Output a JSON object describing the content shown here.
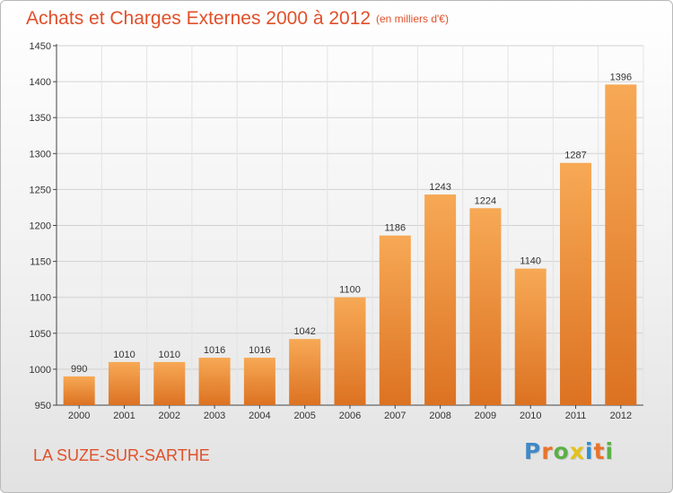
{
  "header": {
    "title": "Achats et Charges Externes 2000 à 2012",
    "subtitle": "(en milliers d'€)"
  },
  "footer": {
    "commune": "LA SUZE-SUR-SARTHE",
    "logo_letters": [
      "P",
      "r",
      "o",
      "x",
      "i",
      "t",
      "i"
    ],
    "logo_colors": [
      "#3f89c9",
      "#e8742c",
      "#5cb047",
      "#e2c21c",
      "#2f8fd0",
      "#e8742c",
      "#5cb047"
    ]
  },
  "chart_data": {
    "type": "bar",
    "categories": [
      "2000",
      "2001",
      "2002",
      "2003",
      "2004",
      "2005",
      "2006",
      "2007",
      "2008",
      "2009",
      "2010",
      "2011",
      "2012"
    ],
    "values": [
      990,
      1010,
      1010,
      1016,
      1016,
      1042,
      1100,
      1186,
      1243,
      1224,
      1140,
      1287,
      1396
    ],
    "ylim": [
      950,
      1450
    ],
    "yticks": [
      950,
      1000,
      1050,
      1100,
      1150,
      1200,
      1250,
      1300,
      1350,
      1400,
      1450
    ],
    "grid": true,
    "bar_color_top": "#f7a955",
    "bar_color_bottom": "#dc7222",
    "text_color": "#333333",
    "title_color": "#e0502a"
  }
}
